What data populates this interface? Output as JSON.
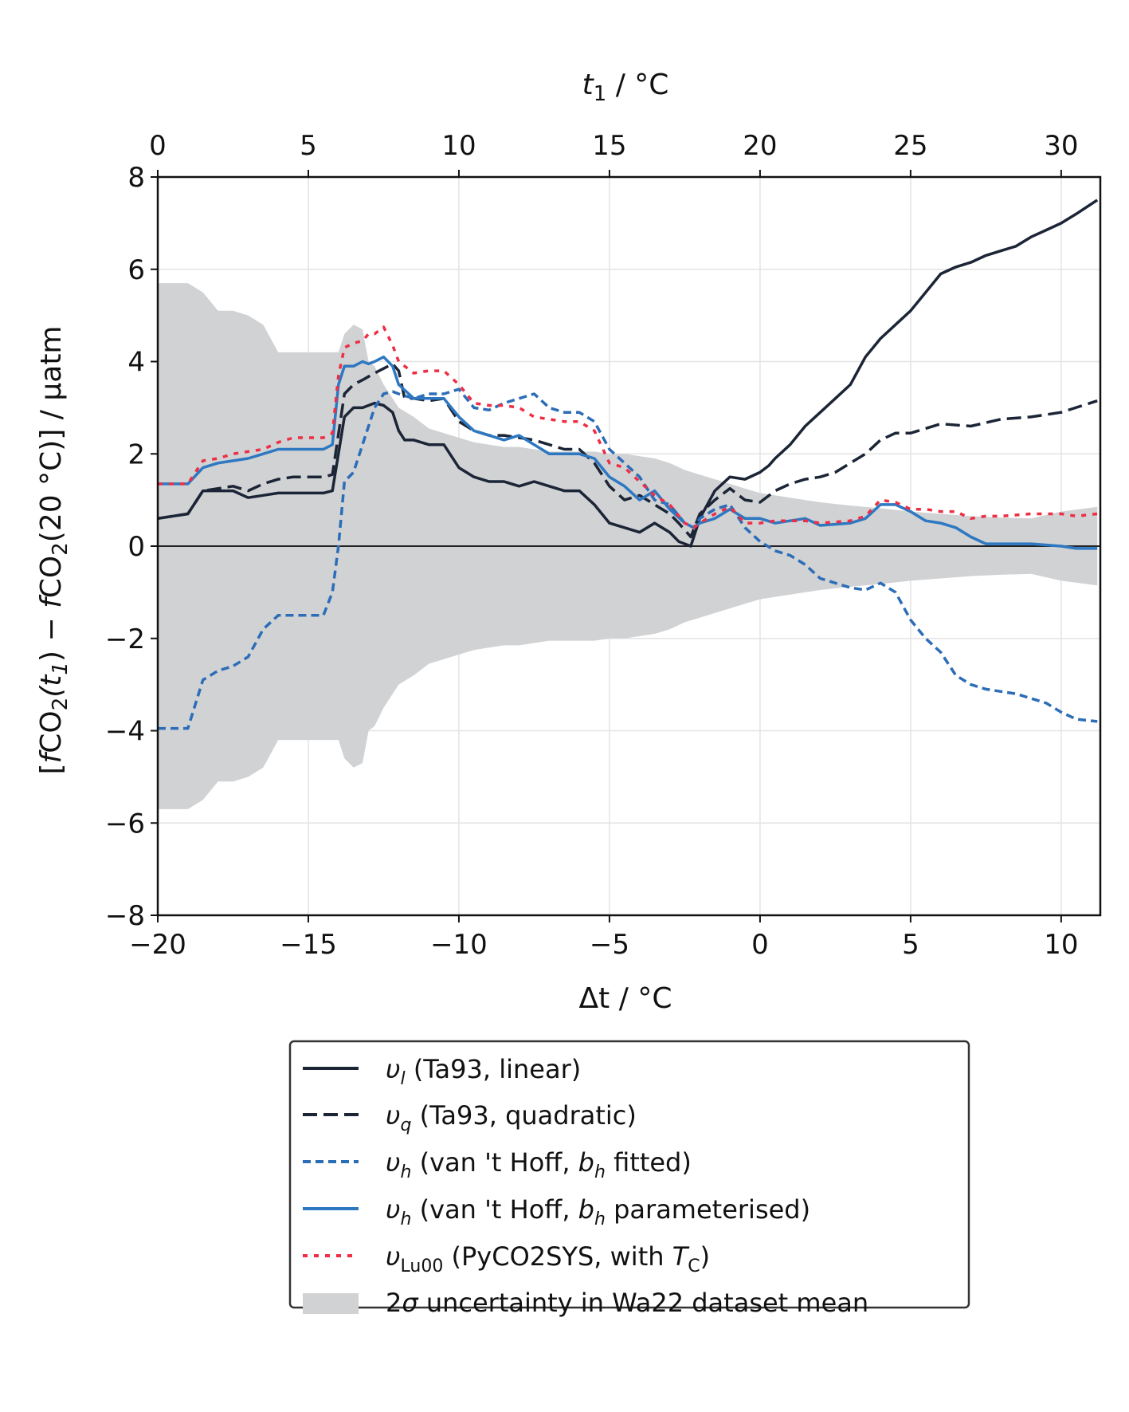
{
  "chart_data": {
    "type": "line",
    "xlabel": "Δt / °C",
    "xlabel_var": "Δt",
    "xlabel_unit": " / °C",
    "top_xlabel_var": "t",
    "top_xlabel_sub": "1",
    "top_xlabel_unit": " / °C",
    "ylabel_parts": {
      "open": "[",
      "f": "f",
      "co": "CO",
      "two": "2",
      "t1a": "(t",
      "one": "1",
      "mid": ") − ",
      "co2": "CO",
      "two2": "2",
      "tail": "(20 °C)] / µatm"
    },
    "xlim": [
      -20,
      11.3
    ],
    "ylim": [
      -8,
      8
    ],
    "top_xlim": [
      0,
      31.3
    ],
    "x_ticks": [
      "−20",
      "−15",
      "−10",
      "−5",
      "0",
      "5",
      "10"
    ],
    "x_tick_values": [
      -20,
      -15,
      -10,
      -5,
      0,
      5,
      10
    ],
    "top_ticks": [
      "0",
      "5",
      "10",
      "15",
      "20",
      "25",
      "30"
    ],
    "top_tick_values": [
      0,
      5,
      10,
      15,
      20,
      25,
      30
    ],
    "y_ticks": [
      "8",
      "6",
      "4",
      "2",
      "0",
      "−2",
      "−4",
      "−6",
      "−8"
    ],
    "y_tick_values": [
      8,
      6,
      4,
      2,
      0,
      -2,
      -4,
      -6,
      -8
    ],
    "grid": true,
    "legend_position": "below",
    "series": [
      {
        "name": "υl (Ta93, linear)",
        "legend_symbol": "υ",
        "legend_sub": "l",
        "legend_text": " (Ta93, linear)",
        "style": "solid",
        "color": "#1b2536",
        "x": [
          -20,
          -19,
          -18.5,
          -17.5,
          -17,
          -16.5,
          -16,
          -15.5,
          -14.5,
          -14.2,
          -13.8,
          -13.5,
          -13.2,
          -12.8,
          -12.5,
          -12.2,
          -12,
          -11.8,
          -11.5,
          -11,
          -10.5,
          -10,
          -9.5,
          -9,
          -8.5,
          -8,
          -7.5,
          -7,
          -6.5,
          -6,
          -5.5,
          -5,
          -4.5,
          -4,
          -3.5,
          -3,
          -2.7,
          -2.3,
          -2,
          -1.5,
          -1,
          -0.5,
          0,
          0.3,
          0.5,
          1,
          1.5,
          2,
          2.5,
          3,
          3.5,
          4,
          4.5,
          5,
          5.5,
          6,
          6.5,
          7,
          7.5,
          8,
          8.5,
          9,
          9.5,
          10,
          10.5,
          11.2
        ],
        "y": [
          0.6,
          0.7,
          1.2,
          1.2,
          1.05,
          1.1,
          1.15,
          1.15,
          1.15,
          1.2,
          2.8,
          3.0,
          3.0,
          3.1,
          3.05,
          2.9,
          2.5,
          2.3,
          2.3,
          2.2,
          2.2,
          1.7,
          1.5,
          1.4,
          1.4,
          1.3,
          1.4,
          1.3,
          1.2,
          1.2,
          0.9,
          0.5,
          0.4,
          0.3,
          0.5,
          0.3,
          0.1,
          0.0,
          0.6,
          1.2,
          1.5,
          1.45,
          1.6,
          1.75,
          1.9,
          2.2,
          2.6,
          2.9,
          3.2,
          3.5,
          4.1,
          4.5,
          4.8,
          5.1,
          5.5,
          5.9,
          6.05,
          6.15,
          6.3,
          6.4,
          6.5,
          6.7,
          6.85,
          7.0,
          7.2,
          7.5
        ]
      },
      {
        "name": "υq (Ta93, quadratic)",
        "legend_symbol": "υ",
        "legend_sub": "q",
        "legend_text": " (Ta93, quadratic)",
        "style": "dashed",
        "color": "#1b2536",
        "x": [
          -20,
          -19,
          -18.5,
          -17.5,
          -17,
          -16.5,
          -16,
          -15.5,
          -14.5,
          -14.2,
          -13.8,
          -13.5,
          -13.2,
          -12.8,
          -12.5,
          -12.2,
          -12,
          -11.8,
          -11.5,
          -11,
          -10.5,
          -10,
          -9.5,
          -9,
          -8.5,
          -8,
          -7.5,
          -7,
          -6.5,
          -6,
          -5.5,
          -5,
          -4.5,
          -4,
          -3.5,
          -3,
          -2.7,
          -2.3,
          -2,
          -1.5,
          -1,
          -0.5,
          0,
          0.5,
          1,
          1.5,
          2,
          2.5,
          3,
          3.5,
          4,
          4.5,
          5,
          5.5,
          6,
          7,
          8,
          9,
          10,
          11.2
        ],
        "y": [
          0.6,
          0.7,
          1.2,
          1.3,
          1.2,
          1.35,
          1.45,
          1.5,
          1.5,
          1.55,
          3.3,
          3.5,
          3.6,
          3.75,
          3.85,
          3.95,
          3.8,
          3.2,
          3.2,
          3.15,
          3.2,
          2.7,
          2.5,
          2.4,
          2.4,
          2.35,
          2.3,
          2.2,
          2.1,
          2.1,
          1.8,
          1.3,
          1.0,
          1.1,
          0.9,
          0.7,
          0.5,
          0.2,
          0.7,
          1.0,
          1.25,
          1.0,
          0.95,
          1.2,
          1.35,
          1.45,
          1.5,
          1.6,
          1.8,
          2.0,
          2.3,
          2.45,
          2.45,
          2.55,
          2.65,
          2.6,
          2.75,
          2.8,
          2.9,
          3.15
        ]
      },
      {
        "name": "υh (van 't Hoff, bh fitted)",
        "legend_symbol": "υ",
        "legend_sub": "h",
        "legend_text": " (van 't Hoff, ",
        "legend_b": "b",
        "legend_b_sub": "h",
        "legend_text_after": " fitted)",
        "style": "short-dash",
        "color": "#2c6db7",
        "x": [
          -20,
          -19,
          -18.5,
          -18,
          -17.5,
          -17,
          -16.5,
          -16,
          -15.5,
          -15,
          -14.5,
          -14.2,
          -14,
          -13.8,
          -13.5,
          -13.2,
          -13,
          -12.8,
          -12.5,
          -12.2,
          -12,
          -11.5,
          -11,
          -10.5,
          -10,
          -9.5,
          -9,
          -8.5,
          -8,
          -7.5,
          -7,
          -6.5,
          -6,
          -5.5,
          -5,
          -4.5,
          -4,
          -3.5,
          -3,
          -2.5,
          -2.2,
          -2,
          -1.5,
          -1,
          -0.5,
          0,
          0.5,
          1,
          1.5,
          2,
          2.5,
          3,
          3.5,
          4,
          4.5,
          5,
          5.5,
          6,
          6.5,
          7,
          7.5,
          8,
          8.5,
          9,
          9.5,
          10,
          10.5,
          11.2
        ],
        "y": [
          -3.95,
          -3.95,
          -2.9,
          -2.7,
          -2.6,
          -2.4,
          -1.8,
          -1.5,
          -1.5,
          -1.5,
          -1.5,
          -1.0,
          0.0,
          1.4,
          1.6,
          2.2,
          2.6,
          3.0,
          3.3,
          3.35,
          3.3,
          3.2,
          3.3,
          3.3,
          3.4,
          3.0,
          2.95,
          3.1,
          3.2,
          3.3,
          3.0,
          2.9,
          2.9,
          2.7,
          2.1,
          1.8,
          1.5,
          1.0,
          0.9,
          0.5,
          0.4,
          0.6,
          0.8,
          0.9,
          0.4,
          0.1,
          -0.1,
          -0.2,
          -0.4,
          -0.7,
          -0.8,
          -0.9,
          -0.95,
          -0.8,
          -1.0,
          -1.6,
          -2.0,
          -2.3,
          -2.8,
          -3.0,
          -3.1,
          -3.15,
          -3.2,
          -3.3,
          -3.4,
          -3.6,
          -3.75,
          -3.8
        ]
      },
      {
        "name": "υh (van 't Hoff, bh parameterised)",
        "legend_symbol": "υ",
        "legend_sub": "h",
        "legend_text": " (van 't Hoff, ",
        "legend_b": "b",
        "legend_b_sub": "h",
        "legend_text_after": " parameterised)",
        "style": "solid",
        "color": "#2e78c2",
        "x": [
          -20,
          -19,
          -18.5,
          -18,
          -17.5,
          -17,
          -16.5,
          -16,
          -15.5,
          -15,
          -14.5,
          -14.2,
          -14,
          -13.8,
          -13.5,
          -13.2,
          -13,
          -12.8,
          -12.5,
          -12.2,
          -12,
          -11.5,
          -11,
          -10.5,
          -10,
          -9.5,
          -9,
          -8.5,
          -8,
          -7.5,
          -7,
          -6.5,
          -6,
          -5.5,
          -5,
          -4.5,
          -4,
          -3.5,
          -3,
          -2.5,
          -2.2,
          -2,
          -1.5,
          -1,
          -0.5,
          0,
          0.5,
          1,
          1.5,
          2,
          3,
          3.5,
          4,
          4.5,
          5,
          5.5,
          6,
          6.5,
          7,
          7.5,
          8,
          9,
          10,
          10.5,
          11.2
        ],
        "y": [
          1.35,
          1.35,
          1.7,
          1.8,
          1.85,
          1.9,
          2.0,
          2.1,
          2.1,
          2.1,
          2.1,
          2.2,
          3.5,
          3.9,
          3.9,
          4.0,
          3.95,
          4.0,
          4.1,
          3.9,
          3.5,
          3.2,
          3.2,
          3.2,
          2.8,
          2.5,
          2.4,
          2.3,
          2.4,
          2.2,
          2.0,
          2.0,
          2.0,
          1.9,
          1.5,
          1.3,
          1.0,
          1.2,
          0.8,
          0.5,
          0.4,
          0.5,
          0.6,
          0.8,
          0.6,
          0.6,
          0.5,
          0.55,
          0.6,
          0.45,
          0.5,
          0.6,
          0.9,
          0.9,
          0.75,
          0.55,
          0.5,
          0.4,
          0.2,
          0.05,
          0.05,
          0.05,
          0.0,
          -0.05,
          -0.05
        ]
      },
      {
        "name": "υLu00 (PyCO2SYS, with TC)",
        "legend_symbol": "υ",
        "legend_sub": "Lu00",
        "legend_text": " (PyCO2SYS, with ",
        "legend_b": "T",
        "legend_b_sub": "C",
        "legend_text_after": ")",
        "style": "dotted",
        "color": "#ee2e45",
        "x": [
          -20,
          -19,
          -18.5,
          -18,
          -17.5,
          -17,
          -16.5,
          -16,
          -15.5,
          -15,
          -14.5,
          -14.2,
          -14,
          -13.8,
          -13.5,
          -13.2,
          -13,
          -12.8,
          -12.5,
          -12.2,
          -12,
          -11.5,
          -11,
          -10.5,
          -10,
          -9.5,
          -9,
          -8.5,
          -8,
          -7.5,
          -7,
          -6.5,
          -6,
          -5.5,
          -5,
          -4.5,
          -4,
          -3.5,
          -3,
          -2.5,
          -2.2,
          -2,
          -1.5,
          -1,
          -0.5,
          0,
          0.5,
          1,
          1.5,
          2,
          3,
          3.5,
          4,
          4.5,
          5,
          5.5,
          6,
          6.5,
          7,
          7.5,
          8,
          9,
          10,
          10.5,
          11.2
        ],
        "y": [
          1.35,
          1.35,
          1.85,
          1.9,
          2.0,
          2.05,
          2.1,
          2.25,
          2.35,
          2.35,
          2.35,
          2.45,
          3.7,
          4.3,
          4.4,
          4.45,
          4.6,
          4.6,
          4.75,
          4.35,
          4.0,
          3.75,
          3.8,
          3.8,
          3.5,
          3.1,
          3.05,
          3.05,
          3.0,
          2.8,
          2.75,
          2.7,
          2.7,
          2.5,
          1.8,
          1.7,
          1.4,
          1.1,
          0.9,
          0.5,
          0.4,
          0.5,
          0.7,
          0.85,
          0.5,
          0.5,
          0.55,
          0.55,
          0.55,
          0.5,
          0.55,
          0.65,
          1.0,
          0.95,
          0.8,
          0.8,
          0.75,
          0.75,
          0.6,
          0.65,
          0.65,
          0.7,
          0.7,
          0.65,
          0.7
        ]
      }
    ],
    "band": {
      "name": "2σ uncertainty in Wa22 dataset mean",
      "legend_pre": "2",
      "legend_sigma": "σ",
      "legend_text": " uncertainty in Wa22 dataset mean",
      "color": "#d1d2d4",
      "x": [
        -20,
        -19,
        -18.5,
        -18,
        -17.5,
        -17,
        -16.5,
        -16,
        -15.5,
        -15,
        -14.5,
        -14,
        -13.8,
        -13.5,
        -13.2,
        -13,
        -12.8,
        -12.5,
        -12.2,
        -12,
        -11.5,
        -11,
        -10.5,
        -10,
        -9.5,
        -9,
        -8.5,
        -8,
        -7.5,
        -7,
        -6.5,
        -6,
        -5.5,
        -5,
        -4.5,
        -4,
        -3.5,
        -3,
        -2.5,
        -2,
        -1.5,
        -1,
        -0.5,
        0,
        1,
        2,
        3,
        4,
        5,
        6,
        7,
        8,
        9,
        10,
        11.2
      ],
      "upper": [
        5.7,
        5.7,
        5.5,
        5.1,
        5.1,
        5.0,
        4.8,
        4.2,
        4.2,
        4.2,
        4.2,
        4.2,
        4.6,
        4.8,
        4.7,
        4.0,
        3.9,
        3.5,
        3.2,
        3.0,
        2.8,
        2.55,
        2.45,
        2.35,
        2.25,
        2.2,
        2.15,
        2.15,
        2.1,
        2.05,
        2.05,
        2.05,
        2.05,
        2.0,
        2.0,
        1.95,
        1.9,
        1.8,
        1.65,
        1.55,
        1.45,
        1.35,
        1.25,
        1.15,
        1.05,
        0.95,
        0.88,
        0.82,
        0.75,
        0.7,
        0.65,
        0.62,
        0.6,
        0.75,
        0.85
      ],
      "lower": [
        -5.7,
        -5.7,
        -5.5,
        -5.1,
        -5.1,
        -5.0,
        -4.8,
        -4.2,
        -4.2,
        -4.2,
        -4.2,
        -4.2,
        -4.6,
        -4.8,
        -4.7,
        -4.0,
        -3.9,
        -3.5,
        -3.2,
        -3.0,
        -2.8,
        -2.55,
        -2.45,
        -2.35,
        -2.25,
        -2.2,
        -2.15,
        -2.15,
        -2.1,
        -2.05,
        -2.05,
        -2.05,
        -2.05,
        -2.0,
        -2.0,
        -1.95,
        -1.9,
        -1.8,
        -1.65,
        -1.55,
        -1.45,
        -1.35,
        -1.25,
        -1.15,
        -1.05,
        -0.95,
        -0.88,
        -0.82,
        -0.75,
        -0.7,
        -0.65,
        -0.62,
        -0.6,
        -0.75,
        -0.85
      ]
    }
  }
}
